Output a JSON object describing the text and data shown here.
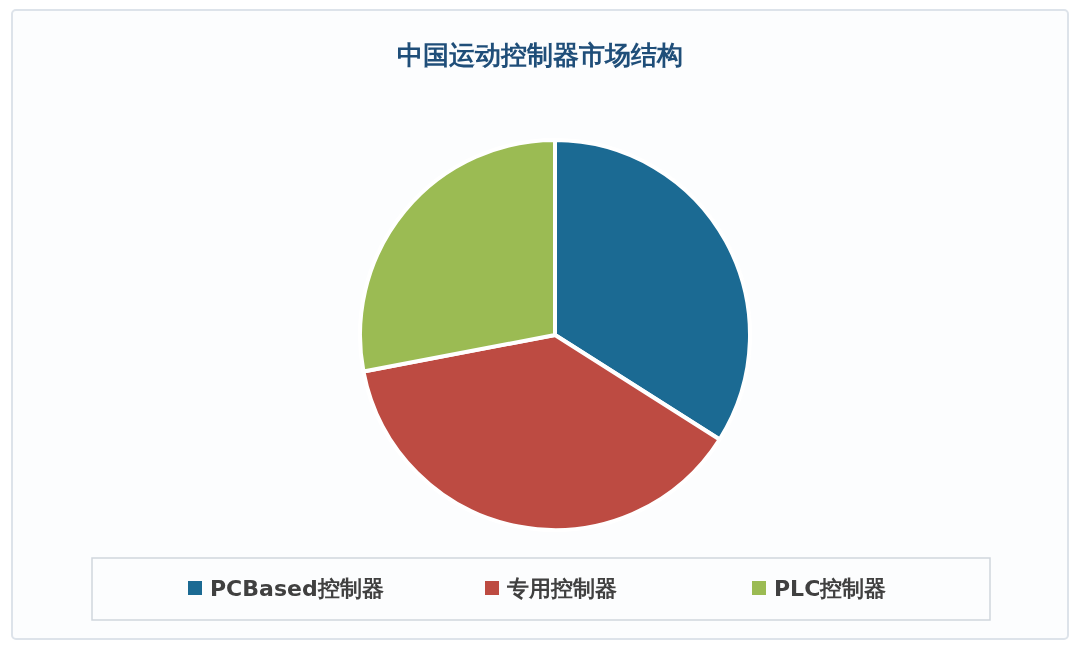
{
  "chart_data": {
    "type": "pie",
    "title": "中国运动控制器市场结构",
    "categories": [
      "PCBased控制器",
      "专用控制器",
      "PLC控制器"
    ],
    "values": [
      34,
      38,
      28
    ],
    "colors": [
      "#1b6a93",
      "#bd4b42",
      "#9bbb53"
    ],
    "legend": "bottom"
  }
}
